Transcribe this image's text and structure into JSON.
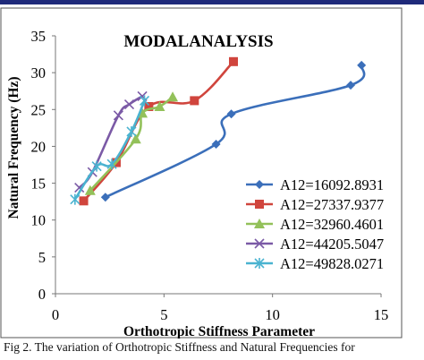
{
  "chart_data": {
    "type": "line",
    "title": "MODALANALYSIS",
    "xlabel": "Orthotropic Stiffness Parameter",
    "ylabel": "Natural Frequency (Hz)",
    "xlim": [
      0,
      15
    ],
    "ylim": [
      0,
      35
    ],
    "xticks": [
      "0",
      "5",
      "10",
      "15"
    ],
    "yticks": [
      "0",
      "5",
      "10",
      "15",
      "20",
      "25",
      "30",
      "35"
    ],
    "grid": false,
    "legend_position": "right",
    "series": [
      {
        "name": "A12=16092.8931",
        "color": "#3b6fba",
        "marker": "diamond",
        "points": [
          [
            2.3,
            13.1
          ],
          [
            7.4,
            20.3
          ],
          [
            8.1,
            24.4
          ],
          [
            13.6,
            28.3
          ],
          [
            14.1,
            31.0
          ]
        ]
      },
      {
        "name": "A12=27337.9377",
        "color": "#d0453d",
        "marker": "square",
        "points": [
          [
            1.3,
            12.6
          ],
          [
            2.8,
            17.8
          ],
          [
            4.3,
            25.4
          ],
          [
            6.4,
            26.2
          ],
          [
            8.2,
            31.5
          ]
        ]
      },
      {
        "name": "A12=32960.4601",
        "color": "#93c15a",
        "marker": "triangle",
        "points": [
          [
            1.6,
            14.0
          ],
          [
            3.7,
            21.0
          ],
          [
            4.0,
            24.5
          ],
          [
            4.8,
            25.4
          ],
          [
            5.4,
            26.7
          ]
        ]
      },
      {
        "name": "A12=44205.5047",
        "color": "#7b5aa6",
        "marker": "x",
        "points": [
          [
            1.1,
            14.4
          ],
          [
            1.7,
            16.5
          ],
          [
            2.9,
            24.2
          ],
          [
            3.4,
            25.7
          ],
          [
            4.0,
            26.8
          ]
        ]
      },
      {
        "name": "A12=49828.0271",
        "color": "#4ab3d0",
        "marker": "asterisk",
        "points": [
          [
            0.9,
            12.8
          ],
          [
            1.9,
            17.3
          ],
          [
            2.6,
            17.6
          ],
          [
            3.5,
            22.0
          ],
          [
            4.1,
            26.2
          ]
        ]
      }
    ]
  },
  "caption": "Fig 2. The variation of Orthotropic Stiffness and Natural Frequencies for"
}
